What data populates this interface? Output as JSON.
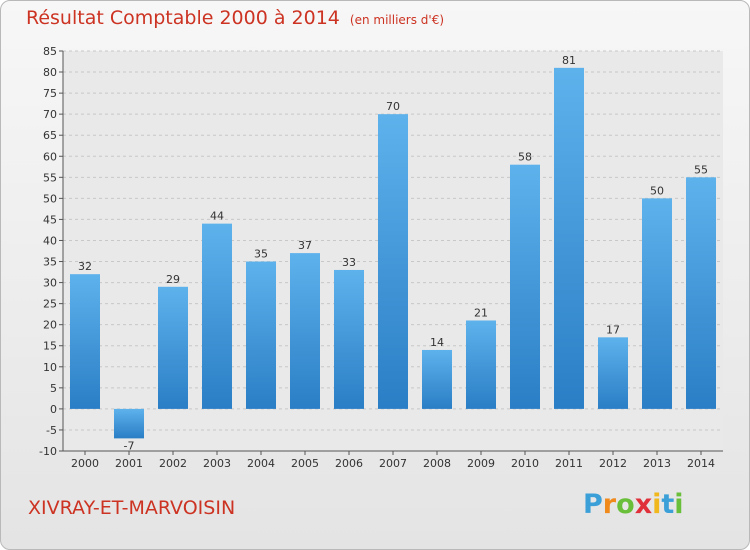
{
  "title": "Résultat Comptable 2000 à 2014",
  "subtitle": "(en milliers d'€)",
  "commune": "XIVRAY-ET-MARVOISIN",
  "logo": {
    "text": "Proxiti",
    "letters": [
      "P",
      "r",
      "o",
      "x",
      "i",
      "t",
      "i"
    ],
    "colors": [
      "#3b9fd8",
      "#f08a1c",
      "#6abf3a",
      "#e0303a",
      "#f0b81c",
      "#3b9fd8",
      "#6abf3a"
    ]
  },
  "colors": {
    "bar_top": "#5eb2ec",
    "bar_bottom": "#2a7ec5",
    "text_red": "#cc3322"
  },
  "chart_data": {
    "type": "bar",
    "title": "Résultat Comptable 2000 à 2014",
    "ylabel": "",
    "xlabel": "",
    "categories": [
      "2000",
      "2001",
      "2002",
      "2003",
      "2004",
      "2005",
      "2006",
      "2007",
      "2008",
      "2009",
      "2010",
      "2011",
      "2012",
      "2013",
      "2014"
    ],
    "values": [
      32,
      -7,
      29,
      44,
      35,
      37,
      33,
      70,
      14,
      21,
      58,
      81,
      17,
      50,
      55
    ],
    "ylim": [
      -10,
      85
    ],
    "yticks": [
      -10,
      -5,
      0,
      5,
      10,
      15,
      20,
      25,
      30,
      35,
      40,
      45,
      50,
      55,
      60,
      65,
      70,
      75,
      80,
      85
    ],
    "grid": true
  }
}
